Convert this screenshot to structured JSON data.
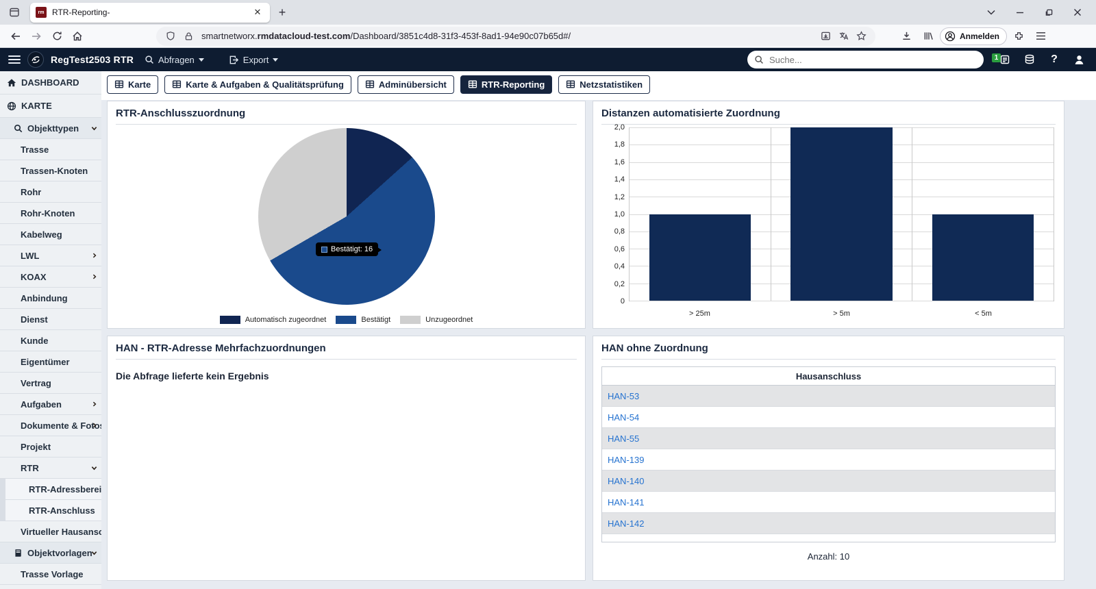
{
  "browser": {
    "tab": {
      "title": "RTR-Reporting-",
      "favicon_text": "rm"
    },
    "url": {
      "host_prefix": "smartnetworx.",
      "host_bold": "rmdatacloud-test.com",
      "path": "/Dashboard/3851c4d8-31f3-453f-8ad1-94e90c07b65d#/"
    },
    "account_label": "Anmelden"
  },
  "app_header": {
    "title": "RegTest2503 RTR",
    "menu_abfragen": "Abfragen",
    "menu_export": "Export",
    "search_placeholder": "Suche...",
    "notification_count": "1"
  },
  "dashboard_tabs": [
    {
      "label": "Karte",
      "active": false
    },
    {
      "label": "Karte & Aufgaben & Qualitätsprüfung",
      "active": false
    },
    {
      "label": "Adminübersicht",
      "active": false
    },
    {
      "label": "RTR-Reporting",
      "active": true
    },
    {
      "label": "Netzstatistiken",
      "active": false
    }
  ],
  "sidebar": {
    "items": [
      {
        "label": "DASHBOARD",
        "icon": "home",
        "level": 0
      },
      {
        "label": "KARTE",
        "icon": "globe",
        "level": 0
      },
      {
        "label": "Objekttypen",
        "icon": "search",
        "level": 1,
        "chevron": "down"
      },
      {
        "label": "Trasse",
        "level": 2
      },
      {
        "label": "Trassen-Knoten",
        "level": 2
      },
      {
        "label": "Rohr",
        "level": 2
      },
      {
        "label": "Rohr-Knoten",
        "level": 2
      },
      {
        "label": "Kabelweg",
        "level": 2
      },
      {
        "label": "LWL",
        "level": 2,
        "chevron": "right"
      },
      {
        "label": "KOAX",
        "level": 2,
        "chevron": "right"
      },
      {
        "label": "Anbindung",
        "level": 2
      },
      {
        "label": "Dienst",
        "level": 2
      },
      {
        "label": "Kunde",
        "level": 2
      },
      {
        "label": "Eigentümer",
        "level": 2
      },
      {
        "label": "Vertrag",
        "level": 2
      },
      {
        "label": "Aufgaben",
        "level": 2,
        "chevron": "right"
      },
      {
        "label": "Dokumente & Fotos",
        "level": 2,
        "chevron": "right"
      },
      {
        "label": "Projekt",
        "level": 2
      },
      {
        "label": "RTR",
        "level": 2,
        "chevron": "down"
      },
      {
        "label": "RTR-Adressbereich",
        "level": 3
      },
      {
        "label": "RTR-Anschluss",
        "level": 3
      },
      {
        "label": "Virtueller Hausansch..",
        "level": 2
      },
      {
        "label": "Objektvorlagen",
        "icon": "book",
        "level": 1,
        "chevron": "down"
      },
      {
        "label": "Trasse Vorlage",
        "level": 2
      }
    ]
  },
  "panels": {
    "pie": {
      "title": "RTR-Anschlusszuordnung",
      "tooltip_text": "Bestätigt: 16"
    },
    "bars": {
      "title": "Distanzen automatisierte Zuordnung"
    },
    "empty": {
      "title": "HAN - RTR-Adresse Mehrfachzuordnungen",
      "message": "Die Abfrage lieferte kein Ergebnis"
    },
    "table": {
      "title": "HAN ohne Zuordnung",
      "header": "Hausanschluss",
      "rows": [
        "HAN-53",
        "HAN-54",
        "HAN-55",
        "HAN-139",
        "HAN-140",
        "HAN-141",
        "HAN-142"
      ],
      "footer": "Anzahl: 10"
    }
  },
  "chart_data": [
    {
      "type": "pie",
      "title": "RTR-Anschlusszuordnung",
      "labels": [
        "Automatisch zugeordnet",
        "Bestätigt",
        "Unzugeordnet"
      ],
      "values": [
        4,
        16,
        10
      ],
      "colors": [
        "#102552",
        "#1a4a8c",
        "#cfcfcf"
      ],
      "legend_position": "bottom",
      "tooltip": {
        "label": "Bestätigt",
        "value": 16
      }
    },
    {
      "type": "bar",
      "title": "Distanzen automatisierte Zuordnung",
      "categories": [
        "> 25m",
        "> 5m",
        "< 5m"
      ],
      "values": [
        1.0,
        2.0,
        1.0
      ],
      "ylim": [
        0,
        2
      ],
      "ytick_labels": [
        "2,0",
        "1,8",
        "1,6",
        "1,4",
        "1,2",
        "1,0",
        "0,8",
        "0,6",
        "0,4",
        "0,2",
        "0"
      ],
      "bar_color": "#102a55",
      "grid": true,
      "xlabel": "",
      "ylabel": ""
    }
  ]
}
